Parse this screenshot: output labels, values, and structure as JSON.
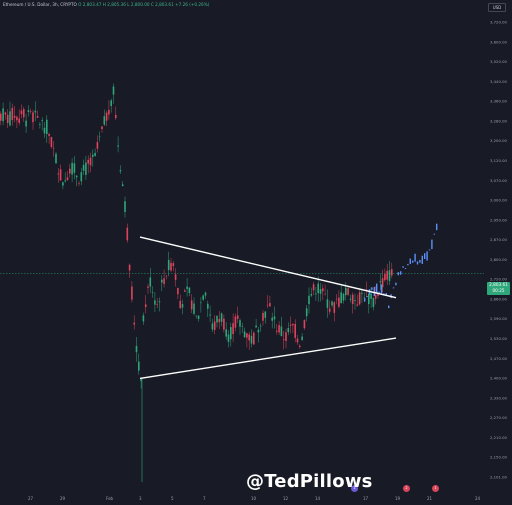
{
  "header": {
    "symbol": "Ethereum / U.S. Dollar, 3h, CRYPTO",
    "ohlc": "O 2,803.47  H 2,805.36  L 2,800.00  C 2,803.61  +7.26 (+0.26%)",
    "currency": "USD"
  },
  "price_tag": {
    "value": "2,803.61",
    "sub": "00:25"
  },
  "watermark": "@TedPillows",
  "event_markers": [
    "1",
    "2",
    "1"
  ],
  "chart_data": {
    "type": "candlestick",
    "title": "Ethereum / U.S. Dollar, 3h, CRYPTO",
    "y_ticks": [
      "3,720.00",
      "3,600.00",
      "3,520.00",
      "3,440.00",
      "3,360.00",
      "3,280.00",
      "3,200.00",
      "3,120.00",
      "3,070.00",
      "3,000.00",
      "2,950.00",
      "2,870.00",
      "2,800.00",
      "2,720.00",
      "2,660.00",
      "2,590.00",
      "2,530.00",
      "2,470.00",
      "2,400.00",
      "2,330.00",
      "2,270.00",
      "2,210.00",
      "2,150.00",
      "2,101.00"
    ],
    "x_ticks": [
      "27",
      "29",
      "Feb",
      "3",
      "5",
      "7",
      "10",
      "12",
      "14",
      "17",
      "19",
      "21",
      "24"
    ],
    "current_price": 2803.61,
    "price_path": [
      [
        "27",
        3355
      ],
      [
        "28",
        3310
      ],
      [
        "29",
        3120
      ],
      [
        "29.5",
        3180
      ],
      [
        "30",
        3140
      ],
      [
        "31",
        3200
      ],
      [
        "Feb",
        3380
      ],
      [
        "1.3",
        3440
      ],
      [
        "1.6",
        3240
      ],
      [
        "2",
        3050
      ],
      [
        "2.5",
        2700
      ],
      [
        "2.8",
        2500
      ],
      [
        "3",
        2430
      ],
      [
        "3.2",
        2680
      ],
      [
        "3.6",
        2780
      ],
      [
        "4",
        2690
      ],
      [
        "4.5",
        2800
      ],
      [
        "5",
        2850
      ],
      [
        "5.5",
        2700
      ],
      [
        "6",
        2740
      ],
      [
        "6.5",
        2640
      ],
      [
        "7",
        2760
      ],
      [
        "7.5",
        2610
      ],
      [
        "8",
        2660
      ],
      [
        "8.5",
        2590
      ],
      [
        "9",
        2640
      ],
      [
        "10",
        2570
      ],
      [
        "10.5",
        2650
      ],
      [
        "11",
        2690
      ],
      [
        "11.5",
        2620
      ],
      [
        "12",
        2580
      ],
      [
        "12.5",
        2620
      ],
      [
        "13",
        2560
      ],
      [
        "13.5",
        2720
      ],
      [
        "14",
        2760
      ],
      [
        "14.5",
        2720
      ],
      [
        "15",
        2680
      ],
      [
        "15.5",
        2720
      ],
      [
        "16",
        2740
      ],
      [
        "16.5",
        2710
      ],
      [
        "17",
        2740
      ],
      [
        "17.5",
        2700
      ],
      [
        "18",
        2770
      ],
      [
        "18.5",
        2800
      ],
      [
        "19",
        2803
      ]
    ],
    "projection": [
      [
        "17",
        2720
      ],
      [
        "18",
        2760
      ],
      [
        "18.5",
        2700
      ],
      [
        "19",
        2790
      ],
      [
        "19.5",
        2830
      ],
      [
        "20",
        2860
      ],
      [
        "20.5",
        2840
      ],
      [
        "21",
        2870
      ],
      [
        "21.5",
        2960
      ]
    ],
    "trendlines": [
      {
        "name": "upper",
        "from": [
          "3",
          2930
        ],
        "to": [
          "19",
          2720
        ]
      },
      {
        "name": "lower",
        "from": [
          "3",
          2440
        ],
        "to": [
          "19",
          2580
        ]
      }
    ]
  }
}
